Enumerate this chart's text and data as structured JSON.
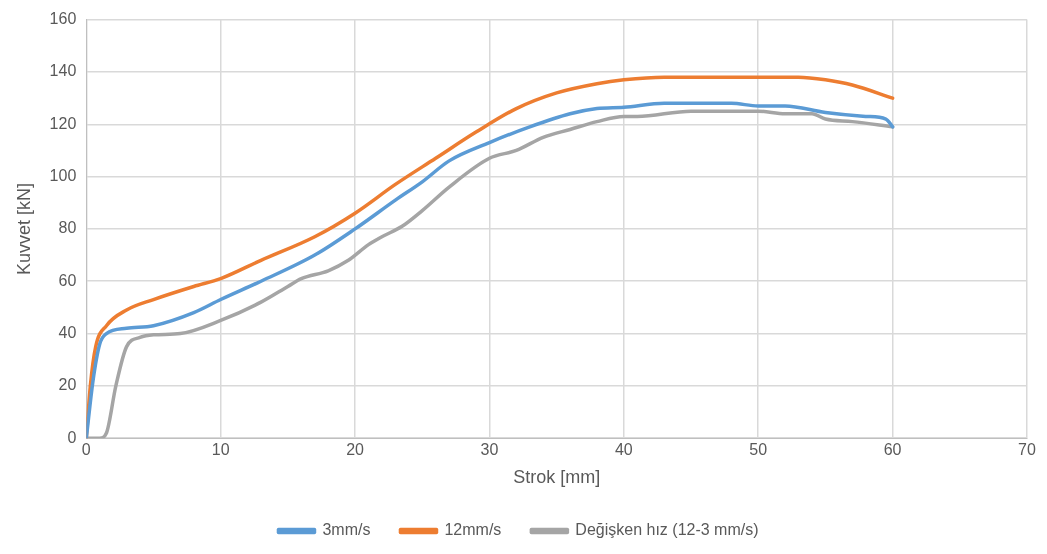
{
  "chart_data": {
    "type": "line",
    "xlabel": "Strok [mm]",
    "ylabel": "Kuvvet [kN]",
    "xlim": [
      0,
      70
    ],
    "xticks": [
      0,
      10,
      20,
      30,
      40,
      50,
      60,
      70
    ],
    "ylim": [
      0,
      160
    ],
    "yticks": [
      0,
      20,
      40,
      60,
      80,
      100,
      120,
      140,
      160
    ],
    "grid": true,
    "legend": "bottom",
    "marker": "none",
    "series": [
      {
        "name": "3mm/s",
        "color": "#5b9bd5",
        "x": [
          0,
          0.5,
          1,
          1.5,
          3,
          5,
          8,
          10,
          13,
          17,
          20,
          23,
          25,
          27,
          30,
          33,
          36,
          38,
          40,
          43,
          48,
          50,
          52,
          55,
          58,
          59.5,
          60
        ],
        "values": [
          0,
          22,
          36,
          40,
          42,
          43,
          48,
          53,
          60,
          70,
          80,
          91,
          98,
          106,
          113,
          119,
          124,
          126,
          126.5,
          128,
          128,
          127,
          127,
          124.5,
          123,
          122,
          119
        ]
      },
      {
        "name": "12mm/s",
        "color": "#ed7d31",
        "x": [
          0,
          0.3,
          0.7,
          1.5,
          3,
          5,
          8,
          10,
          13,
          17,
          20,
          23,
          26,
          29,
          32,
          35,
          38,
          40,
          43,
          50,
          53,
          55,
          57,
          60
        ],
        "values": [
          0,
          20,
          35,
          43,
          49,
          53,
          58,
          61,
          68,
          77,
          86,
          97,
          107,
          117,
          126,
          132,
          135.5,
          137,
          138,
          138,
          138,
          137,
          135,
          130
        ]
      },
      {
        "name": "Değişken hız (12-3 mm/s)",
        "color": "#a5a5a5",
        "x": [
          0,
          1,
          1.5,
          2.2,
          3,
          4,
          5,
          7,
          10,
          13,
          15,
          16,
          18,
          19.5,
          21,
          22,
          23.5,
          25,
          27,
          30,
          32,
          34,
          36,
          38,
          40,
          41,
          45,
          50,
          52,
          54,
          55,
          57,
          60
        ],
        "values": [
          0,
          0,
          2,
          20,
          35,
          38.5,
          39.5,
          40,
          45,
          52,
          58,
          61,
          64,
          68,
          74,
          77,
          81,
          87,
          96,
          107,
          110,
          115,
          118,
          121,
          123,
          123,
          125,
          125,
          124,
          124,
          122,
          121,
          119
        ]
      }
    ]
  }
}
